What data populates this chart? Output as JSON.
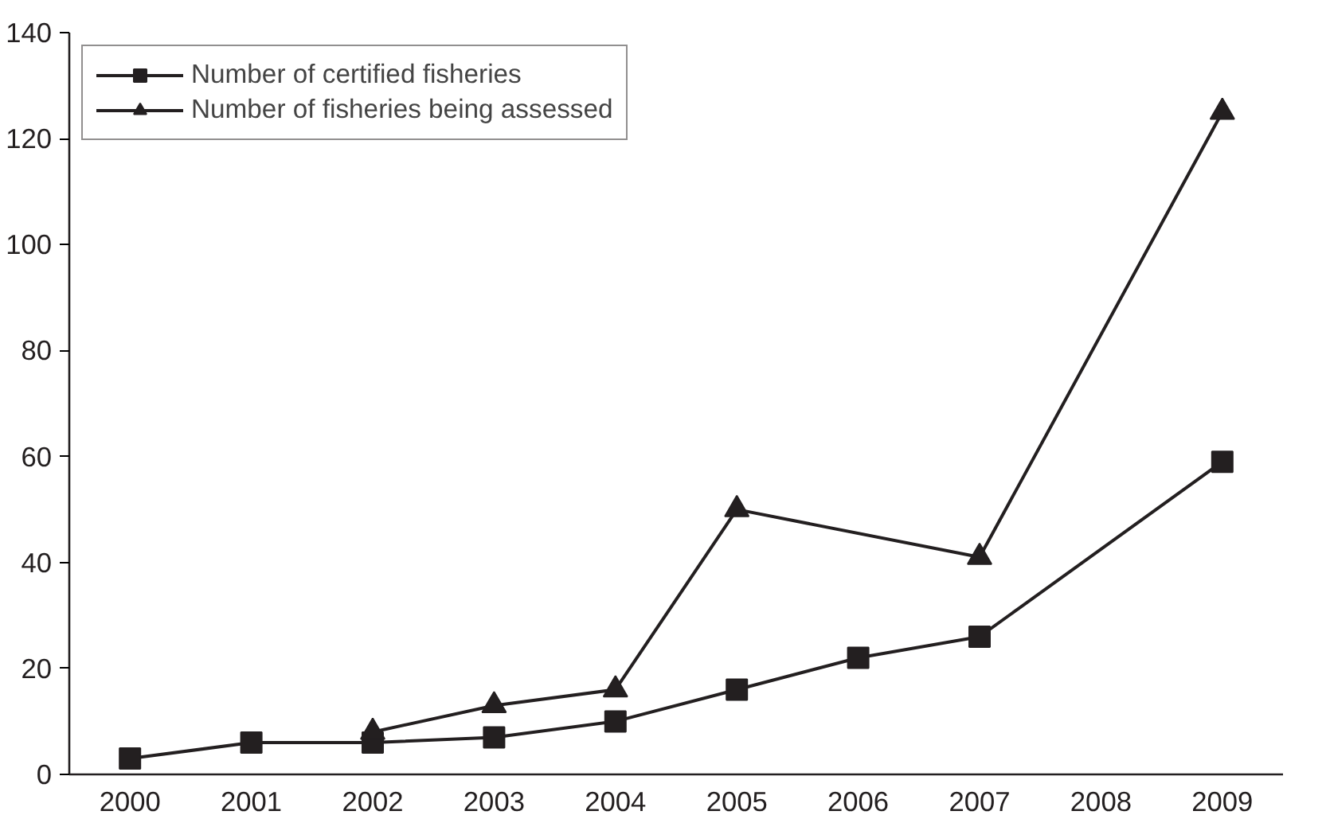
{
  "chart_data": {
    "type": "line",
    "categories": [
      "2000",
      "2001",
      "2002",
      "2003",
      "2004",
      "2005",
      "2006",
      "2007",
      "2008",
      "2009"
    ],
    "series": [
      {
        "name": "Number of certified fisheries",
        "color": "#231f20",
        "marker": "square",
        "values": [
          3,
          6,
          6,
          7,
          10,
          16,
          22,
          26,
          null,
          59
        ]
      },
      {
        "name": "Number of fisheries being assessed",
        "color": "#231f20",
        "marker": "triangle",
        "values": [
          null,
          null,
          8,
          13,
          16,
          50,
          null,
          41,
          null,
          125
        ]
      }
    ],
    "ylim": [
      0,
      140
    ],
    "yticks": [
      0,
      20,
      40,
      60,
      80,
      100,
      120,
      140
    ],
    "grid": false,
    "legend": "top left",
    "line_style": "solid"
  }
}
